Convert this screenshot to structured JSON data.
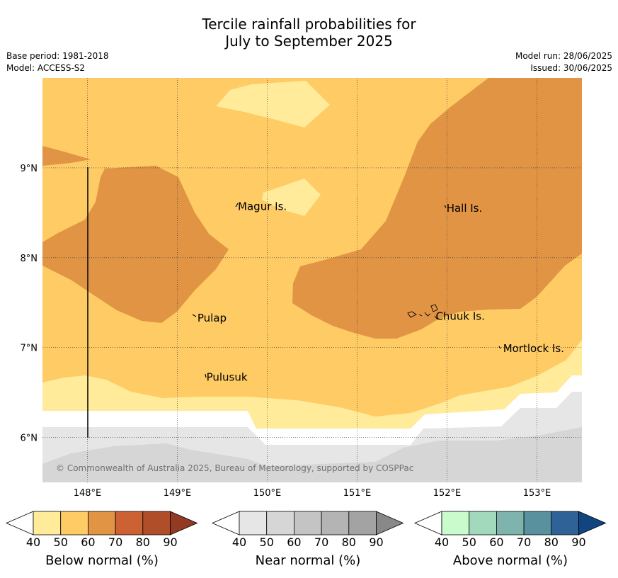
{
  "title_line1": "Tercile rainfall probabilities for",
  "title_line2": "July to September 2025",
  "meta_left": {
    "base_period": "Base period: 1981-2018",
    "model": "Model: ACCESS-S2"
  },
  "meta_right": {
    "model_run": "Model run: 28/06/2025",
    "issued": "Issued: 30/06/2025"
  },
  "map": {
    "lon_range": [
      147.5,
      153.5
    ],
    "lat_range": [
      5.5,
      10.0
    ],
    "lon_ticks": [
      "148°E",
      "149°E",
      "150°E",
      "151°E",
      "152°E",
      "153°E"
    ],
    "lat_ticks": [
      "9°N",
      "8°N",
      "7°N",
      "6°N"
    ],
    "gridlines": true,
    "places": [
      {
        "name": "Magur Is.",
        "lon": 149.65,
        "lat": 8.57
      },
      {
        "name": "Hall Is.",
        "lon": 151.97,
        "lat": 8.55
      },
      {
        "name": "Pulap",
        "lon": 149.2,
        "lat": 7.33
      },
      {
        "name": "Chuuk Is.",
        "lon": 151.85,
        "lat": 7.35
      },
      {
        "name": "Mortlock Is.",
        "lon": 152.6,
        "lat": 6.99
      },
      {
        "name": "Pulusuk",
        "lon": 149.3,
        "lat": 6.67
      }
    ],
    "copyright": "© Commonwealth of Australia 2025, Bureau of Meteorology, supported by COSPPac"
  },
  "colors": {
    "below": [
      "#ffeb9a",
      "#fecb65",
      "#e09444",
      "#cc6233",
      "#b14e2a",
      "#923a22"
    ],
    "near": [
      "#e6e6e6",
      "#d6d6d6",
      "#c4c4c4",
      "#b4b4b4",
      "#a3a3a3",
      "#888888"
    ],
    "above": [
      "#c9fbcd",
      "#a2d9bd",
      "#7eb3ae",
      "#5a919f",
      "#2f6397",
      "#11457f"
    ]
  },
  "colorbars": [
    {
      "name": "below",
      "label": "Below normal (%)",
      "ticks": [
        "40",
        "50",
        "60",
        "70",
        "80",
        "90"
      ]
    },
    {
      "name": "near",
      "label": "Near normal (%)",
      "ticks": [
        "40",
        "50",
        "60",
        "70",
        "80",
        "90"
      ]
    },
    {
      "name": "above",
      "label": "Above normal (%)",
      "ticks": [
        "40",
        "50",
        "60",
        "70",
        "80",
        "90"
      ]
    }
  ]
}
